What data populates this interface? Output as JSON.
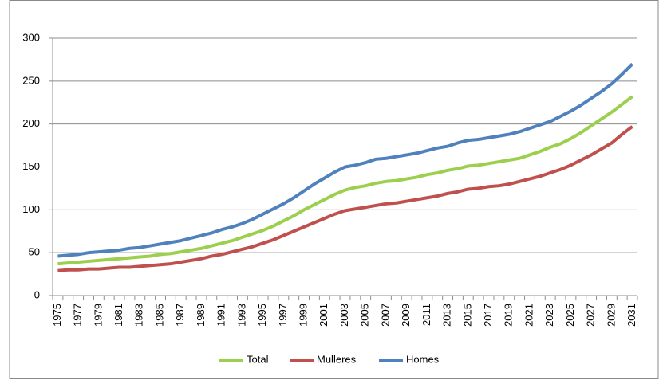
{
  "chart_data": {
    "type": "line",
    "categories": [
      "1975",
      null,
      "1977",
      null,
      "1979",
      null,
      "1981",
      null,
      "1983",
      null,
      "1985",
      null,
      "1987",
      null,
      "1989",
      null,
      "1991",
      null,
      "1993",
      null,
      "1995",
      null,
      "1997",
      null,
      "1999",
      null,
      "2001",
      null,
      "2003",
      null,
      "2005",
      null,
      "2007",
      null,
      "2009",
      null,
      "2011",
      null,
      "2013",
      null,
      "2015",
      null,
      "2017",
      null,
      "2019",
      null,
      "2021",
      null,
      "2023",
      null,
      "2025",
      null,
      "2027",
      null,
      "2029",
      null,
      "2031"
    ],
    "series": [
      {
        "name": "Total",
        "color": "#9bcf4c",
        "values": [
          37,
          38,
          39,
          40,
          41,
          42,
          43,
          44,
          45,
          46,
          48,
          49,
          51,
          53,
          55,
          58,
          61,
          64,
          68,
          72,
          76,
          81,
          87,
          93,
          100,
          106,
          112,
          118,
          123,
          126,
          128,
          131,
          133,
          134,
          136,
          138,
          141,
          143,
          146,
          148,
          151,
          152,
          154,
          156,
          158,
          160,
          164,
          168,
          173,
          177,
          183,
          190,
          198,
          206,
          214,
          223,
          232
        ]
      },
      {
        "name": "Mulleres",
        "color": "#c0504d",
        "values": [
          29,
          30,
          30,
          31,
          31,
          32,
          33,
          33,
          34,
          35,
          36,
          37,
          39,
          41,
          43,
          46,
          48,
          51,
          54,
          57,
          61,
          65,
          70,
          75,
          80,
          85,
          90,
          95,
          99,
          101,
          103,
          105,
          107,
          108,
          110,
          112,
          114,
          116,
          119,
          121,
          124,
          125,
          127,
          128,
          130,
          133,
          136,
          139,
          143,
          147,
          152,
          158,
          164,
          171,
          178,
          188,
          197
        ]
      },
      {
        "name": "Homes",
        "color": "#4f81bd",
        "values": [
          46,
          47,
          48,
          50,
          51,
          52,
          53,
          55,
          56,
          58,
          60,
          62,
          64,
          67,
          70,
          73,
          77,
          80,
          84,
          89,
          95,
          101,
          107,
          114,
          122,
          130,
          137,
          144,
          150,
          152,
          155,
          159,
          160,
          162,
          164,
          166,
          169,
          172,
          174,
          178,
          181,
          182,
          184,
          186,
          188,
          191,
          195,
          199,
          203,
          209,
          215,
          222,
          230,
          238,
          247,
          258,
          270
        ]
      }
    ],
    "ylim": [
      0,
      300
    ],
    "yticks": [
      0,
      50,
      100,
      150,
      200,
      250,
      300
    ],
    "grid": true,
    "legend": "bottom"
  }
}
